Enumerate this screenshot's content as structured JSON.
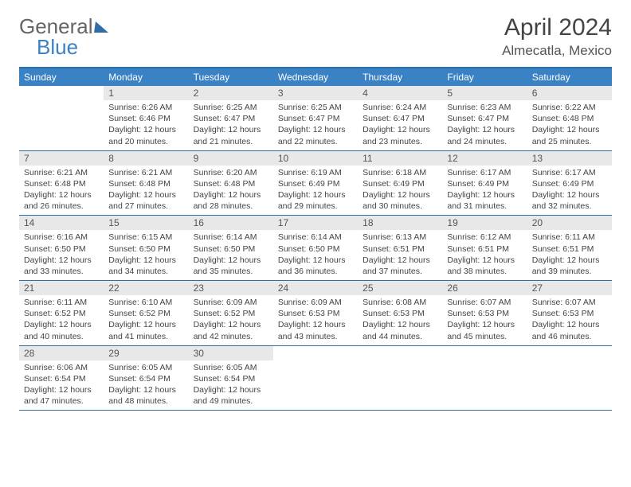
{
  "logo": {
    "text1": "General",
    "text2": "Blue"
  },
  "title": "April 2024",
  "location": "Almecatla, Mexico",
  "weekdays": [
    "Sunday",
    "Monday",
    "Tuesday",
    "Wednesday",
    "Thursday",
    "Friday",
    "Saturday"
  ],
  "colors": {
    "header_bar": "#3b82c4",
    "rule": "#2e6fa8",
    "daynum_bg": "#e8e8e8",
    "text": "#444444"
  },
  "weeks": [
    [
      {
        "n": "",
        "empty": true
      },
      {
        "n": "1",
        "sunrise": "Sunrise: 6:26 AM",
        "sunset": "Sunset: 6:46 PM",
        "day1": "Daylight: 12 hours",
        "day2": "and 20 minutes."
      },
      {
        "n": "2",
        "sunrise": "Sunrise: 6:25 AM",
        "sunset": "Sunset: 6:47 PM",
        "day1": "Daylight: 12 hours",
        "day2": "and 21 minutes."
      },
      {
        "n": "3",
        "sunrise": "Sunrise: 6:25 AM",
        "sunset": "Sunset: 6:47 PM",
        "day1": "Daylight: 12 hours",
        "day2": "and 22 minutes."
      },
      {
        "n": "4",
        "sunrise": "Sunrise: 6:24 AM",
        "sunset": "Sunset: 6:47 PM",
        "day1": "Daylight: 12 hours",
        "day2": "and 23 minutes."
      },
      {
        "n": "5",
        "sunrise": "Sunrise: 6:23 AM",
        "sunset": "Sunset: 6:47 PM",
        "day1": "Daylight: 12 hours",
        "day2": "and 24 minutes."
      },
      {
        "n": "6",
        "sunrise": "Sunrise: 6:22 AM",
        "sunset": "Sunset: 6:48 PM",
        "day1": "Daylight: 12 hours",
        "day2": "and 25 minutes."
      }
    ],
    [
      {
        "n": "7",
        "sunrise": "Sunrise: 6:21 AM",
        "sunset": "Sunset: 6:48 PM",
        "day1": "Daylight: 12 hours",
        "day2": "and 26 minutes."
      },
      {
        "n": "8",
        "sunrise": "Sunrise: 6:21 AM",
        "sunset": "Sunset: 6:48 PM",
        "day1": "Daylight: 12 hours",
        "day2": "and 27 minutes."
      },
      {
        "n": "9",
        "sunrise": "Sunrise: 6:20 AM",
        "sunset": "Sunset: 6:48 PM",
        "day1": "Daylight: 12 hours",
        "day2": "and 28 minutes."
      },
      {
        "n": "10",
        "sunrise": "Sunrise: 6:19 AM",
        "sunset": "Sunset: 6:49 PM",
        "day1": "Daylight: 12 hours",
        "day2": "and 29 minutes."
      },
      {
        "n": "11",
        "sunrise": "Sunrise: 6:18 AM",
        "sunset": "Sunset: 6:49 PM",
        "day1": "Daylight: 12 hours",
        "day2": "and 30 minutes."
      },
      {
        "n": "12",
        "sunrise": "Sunrise: 6:17 AM",
        "sunset": "Sunset: 6:49 PM",
        "day1": "Daylight: 12 hours",
        "day2": "and 31 minutes."
      },
      {
        "n": "13",
        "sunrise": "Sunrise: 6:17 AM",
        "sunset": "Sunset: 6:49 PM",
        "day1": "Daylight: 12 hours",
        "day2": "and 32 minutes."
      }
    ],
    [
      {
        "n": "14",
        "sunrise": "Sunrise: 6:16 AM",
        "sunset": "Sunset: 6:50 PM",
        "day1": "Daylight: 12 hours",
        "day2": "and 33 minutes."
      },
      {
        "n": "15",
        "sunrise": "Sunrise: 6:15 AM",
        "sunset": "Sunset: 6:50 PM",
        "day1": "Daylight: 12 hours",
        "day2": "and 34 minutes."
      },
      {
        "n": "16",
        "sunrise": "Sunrise: 6:14 AM",
        "sunset": "Sunset: 6:50 PM",
        "day1": "Daylight: 12 hours",
        "day2": "and 35 minutes."
      },
      {
        "n": "17",
        "sunrise": "Sunrise: 6:14 AM",
        "sunset": "Sunset: 6:50 PM",
        "day1": "Daylight: 12 hours",
        "day2": "and 36 minutes."
      },
      {
        "n": "18",
        "sunrise": "Sunrise: 6:13 AM",
        "sunset": "Sunset: 6:51 PM",
        "day1": "Daylight: 12 hours",
        "day2": "and 37 minutes."
      },
      {
        "n": "19",
        "sunrise": "Sunrise: 6:12 AM",
        "sunset": "Sunset: 6:51 PM",
        "day1": "Daylight: 12 hours",
        "day2": "and 38 minutes."
      },
      {
        "n": "20",
        "sunrise": "Sunrise: 6:11 AM",
        "sunset": "Sunset: 6:51 PM",
        "day1": "Daylight: 12 hours",
        "day2": "and 39 minutes."
      }
    ],
    [
      {
        "n": "21",
        "sunrise": "Sunrise: 6:11 AM",
        "sunset": "Sunset: 6:52 PM",
        "day1": "Daylight: 12 hours",
        "day2": "and 40 minutes."
      },
      {
        "n": "22",
        "sunrise": "Sunrise: 6:10 AM",
        "sunset": "Sunset: 6:52 PM",
        "day1": "Daylight: 12 hours",
        "day2": "and 41 minutes."
      },
      {
        "n": "23",
        "sunrise": "Sunrise: 6:09 AM",
        "sunset": "Sunset: 6:52 PM",
        "day1": "Daylight: 12 hours",
        "day2": "and 42 minutes."
      },
      {
        "n": "24",
        "sunrise": "Sunrise: 6:09 AM",
        "sunset": "Sunset: 6:53 PM",
        "day1": "Daylight: 12 hours",
        "day2": "and 43 minutes."
      },
      {
        "n": "25",
        "sunrise": "Sunrise: 6:08 AM",
        "sunset": "Sunset: 6:53 PM",
        "day1": "Daylight: 12 hours",
        "day2": "and 44 minutes."
      },
      {
        "n": "26",
        "sunrise": "Sunrise: 6:07 AM",
        "sunset": "Sunset: 6:53 PM",
        "day1": "Daylight: 12 hours",
        "day2": "and 45 minutes."
      },
      {
        "n": "27",
        "sunrise": "Sunrise: 6:07 AM",
        "sunset": "Sunset: 6:53 PM",
        "day1": "Daylight: 12 hours",
        "day2": "and 46 minutes."
      }
    ],
    [
      {
        "n": "28",
        "sunrise": "Sunrise: 6:06 AM",
        "sunset": "Sunset: 6:54 PM",
        "day1": "Daylight: 12 hours",
        "day2": "and 47 minutes."
      },
      {
        "n": "29",
        "sunrise": "Sunrise: 6:05 AM",
        "sunset": "Sunset: 6:54 PM",
        "day1": "Daylight: 12 hours",
        "day2": "and 48 minutes."
      },
      {
        "n": "30",
        "sunrise": "Sunrise: 6:05 AM",
        "sunset": "Sunset: 6:54 PM",
        "day1": "Daylight: 12 hours",
        "day2": "and 49 minutes."
      },
      {
        "n": "",
        "empty": true
      },
      {
        "n": "",
        "empty": true
      },
      {
        "n": "",
        "empty": true
      },
      {
        "n": "",
        "empty": true
      }
    ]
  ]
}
